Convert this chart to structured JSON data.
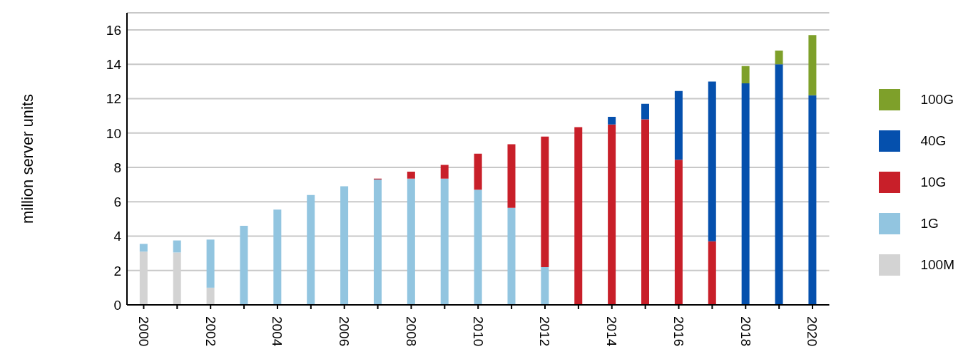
{
  "chart_data": {
    "type": "bar",
    "stacked": true,
    "ylabel": "million server units",
    "categories": [
      "2000",
      null,
      "2002",
      null,
      "2004",
      null,
      "2006",
      null,
      "2008",
      null,
      "2010",
      null,
      "2012",
      null,
      "2014",
      null,
      "2016",
      null,
      "2018",
      null,
      "2020"
    ],
    "series": [
      {
        "name": "100M",
        "color": "#d3d3d3",
        "values": [
          3.1,
          3.05,
          1.0,
          null,
          null,
          null,
          null,
          null,
          null,
          null,
          null,
          null,
          null,
          null,
          null,
          null,
          null,
          null,
          null,
          null,
          null
        ]
      },
      {
        "name": "1G",
        "color": "#92c5e0",
        "values": [
          0.45,
          0.7,
          2.8,
          4.6,
          5.55,
          6.4,
          6.9,
          7.3,
          7.35,
          7.35,
          6.7,
          5.65,
          2.2,
          null,
          null,
          null,
          null,
          null,
          null,
          null,
          null
        ]
      },
      {
        "name": "10G",
        "color": "#c81f29",
        "values": [
          null,
          null,
          null,
          null,
          null,
          null,
          null,
          0.05,
          0.4,
          0.8,
          2.1,
          3.7,
          7.6,
          10.35,
          10.5,
          10.8,
          8.45,
          3.7,
          null,
          null,
          null
        ]
      },
      {
        "name": "40G",
        "color": "#0550ad",
        "values": [
          null,
          null,
          null,
          null,
          null,
          null,
          null,
          null,
          null,
          null,
          null,
          null,
          null,
          null,
          0.45,
          0.9,
          4.0,
          9.3,
          12.9,
          14.0,
          12.2
        ]
      },
      {
        "name": "100G",
        "color": "#7ea02a",
        "values": [
          null,
          null,
          null,
          null,
          null,
          null,
          null,
          null,
          null,
          null,
          null,
          null,
          null,
          null,
          null,
          null,
          null,
          null,
          1.0,
          0.8,
          3.5
        ]
      }
    ],
    "ylim": [
      0,
      17
    ],
    "yticks": [
      0,
      2,
      4,
      6,
      8,
      10,
      12,
      14,
      16
    ],
    "grid": "y",
    "legend": "right"
  }
}
